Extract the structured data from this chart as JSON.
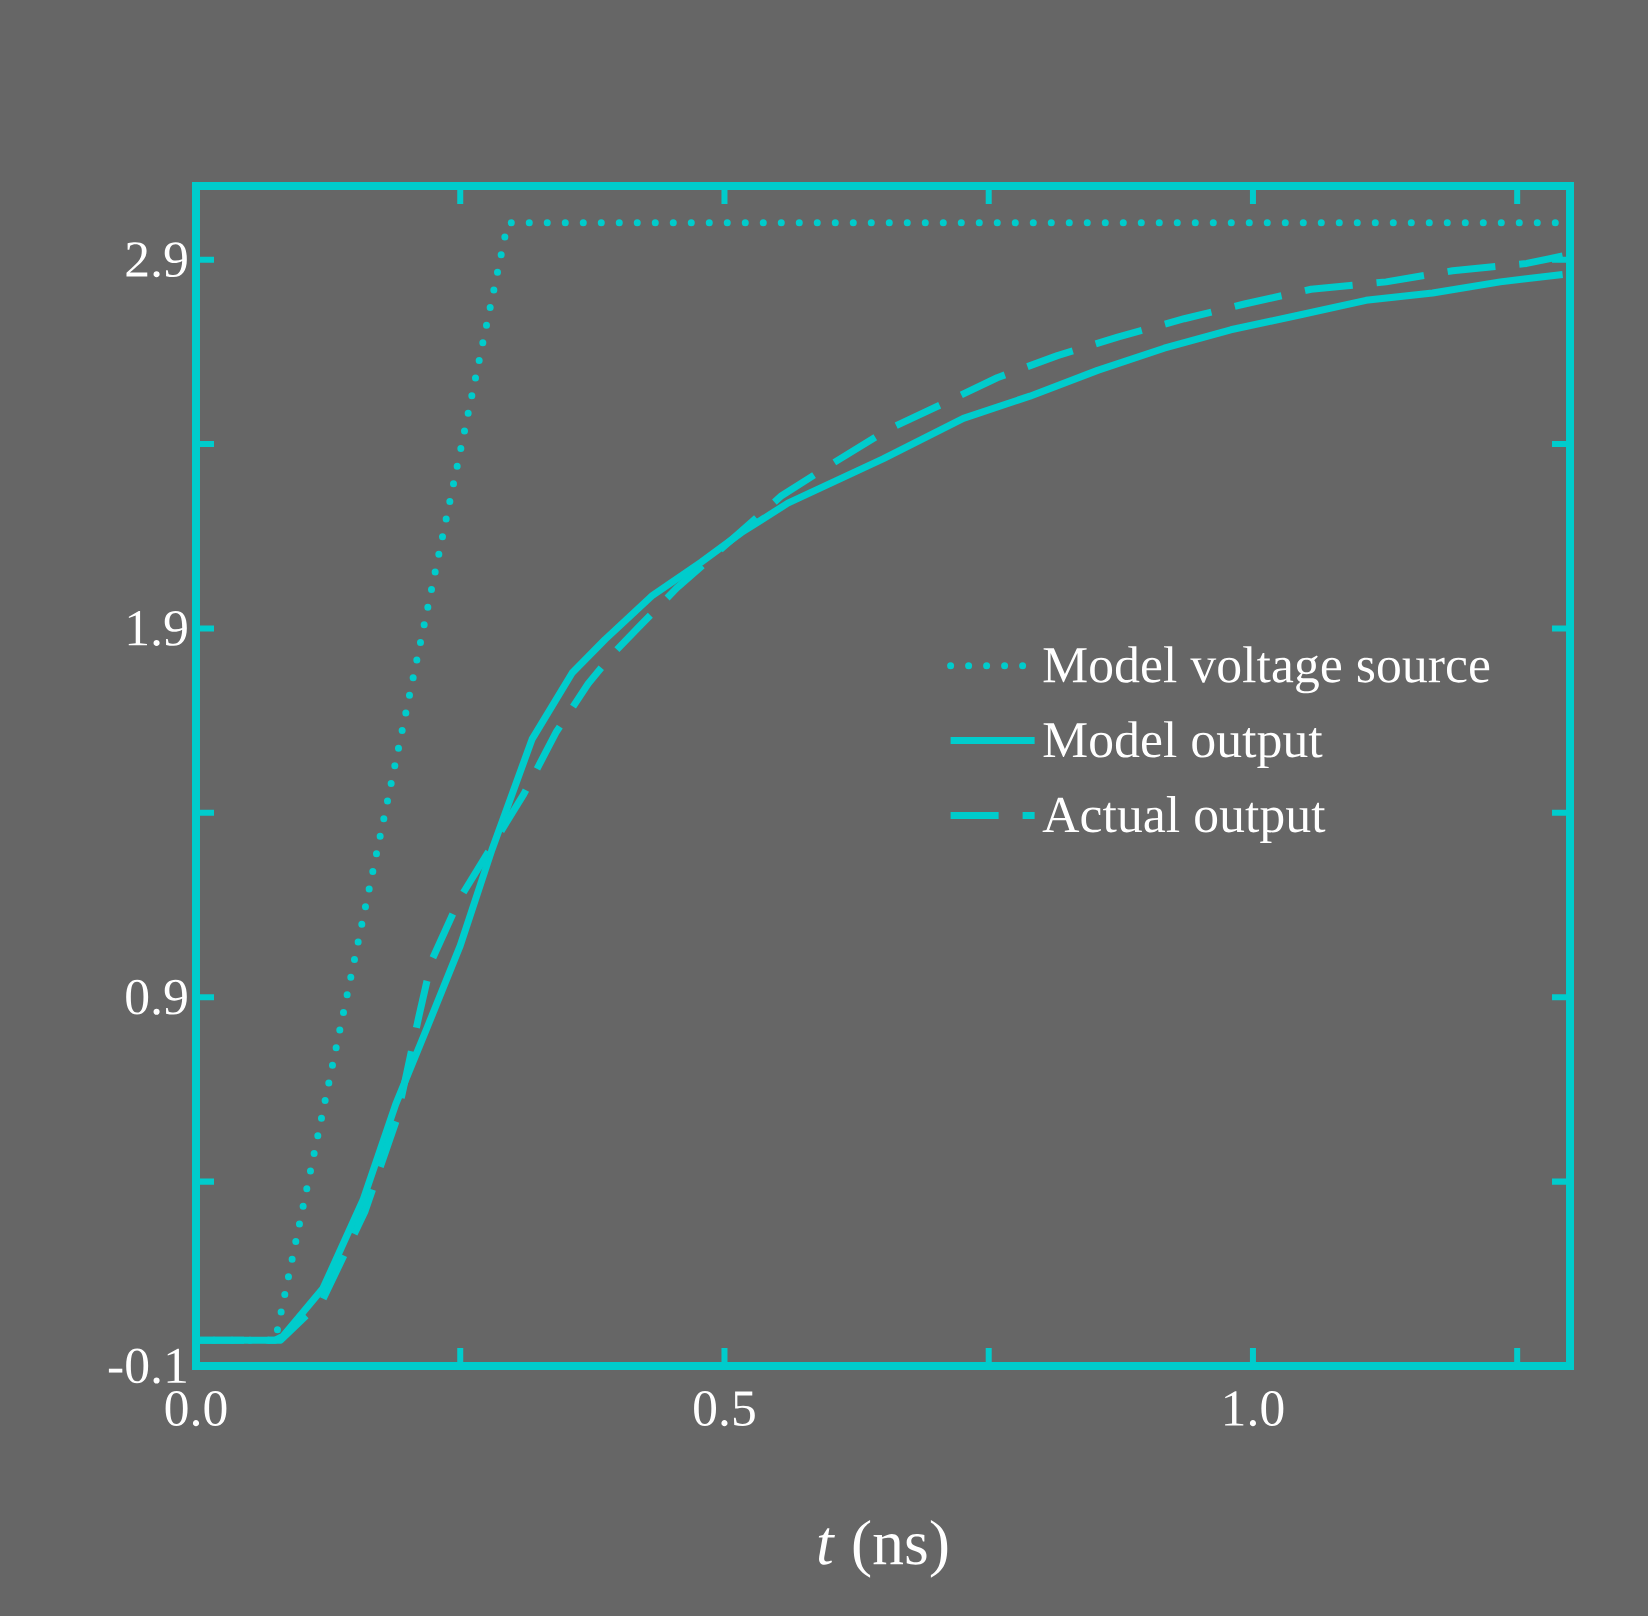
{
  "chart_data": {
    "type": "line",
    "xlabel": "*t* (ns)",
    "xlim": [
      0,
      1.3
    ],
    "ylim": [
      -0.1,
      3.1
    ],
    "xticks": [
      {
        "value": 0,
        "label": "0.0"
      },
      {
        "value": 0.25,
        "label": null
      },
      0.5,
      {
        "value": 0.75,
        "label": null
      },
      {
        "value": 1.0,
        "label": "1.0"
      },
      {
        "value": 1.25,
        "label": null
      }
    ],
    "yticks": [
      -0.1,
      {
        "value": 0.4,
        "label": null
      },
      0.9,
      {
        "value": 1.4,
        "label": null
      },
      1.9,
      {
        "value": 2.4,
        "label": null
      },
      2.9
    ],
    "legend": "right",
    "grid": false,
    "marker": "none",
    "series": [
      {
        "name": "Model voltage source",
        "color": "#00cccc",
        "line_style": "dotted",
        "x": [
          0,
          0.075,
          0.295,
          1.3
        ],
        "values": [
          -0.03,
          -0.03,
          3.0,
          3.0
        ]
      },
      {
        "name": "Model output",
        "color": "#00cccc",
        "line_style": "solid",
        "x": [
          0,
          0.075,
          0.082,
          0.12,
          0.158,
          0.189,
          0.219,
          0.25,
          0.28,
          0.318,
          0.356,
          0.387,
          0.432,
          0.478,
          0.516,
          0.56,
          0.65,
          0.726,
          0.789,
          0.853,
          0.916,
          0.979,
          1.044,
          1.107,
          1.17,
          1.234,
          1.293
        ],
        "values": [
          -0.03,
          -0.03,
          -0.02,
          0.11,
          0.35,
          0.61,
          0.82,
          1.04,
          1.3,
          1.6,
          1.78,
          1.87,
          1.99,
          2.08,
          2.16,
          2.24,
          2.36,
          2.47,
          2.53,
          2.6,
          2.66,
          2.71,
          2.75,
          2.79,
          2.81,
          2.84,
          2.86
        ]
      },
      {
        "name": "Actual output",
        "color": "#00cccc",
        "line_style": "dashed",
        "x": [
          0,
          0.08,
          0.12,
          0.16,
          0.19,
          0.211,
          0.223,
          0.25,
          0.31,
          0.341,
          0.371,
          0.394,
          0.421,
          0.455,
          0.554,
          0.598,
          0.655,
          0.707,
          0.758,
          0.815,
          0.872,
          0.935,
          0.992,
          1.055,
          1.126,
          1.189,
          1.259,
          1.293
        ],
        "values": [
          -0.03,
          -0.03,
          0.08,
          0.32,
          0.57,
          0.85,
          1.0,
          1.17,
          1.45,
          1.62,
          1.75,
          1.83,
          1.91,
          2.01,
          2.26,
          2.34,
          2.44,
          2.51,
          2.58,
          2.64,
          2.69,
          2.74,
          2.78,
          2.82,
          2.84,
          2.87,
          2.89,
          2.91
        ]
      }
    ]
  }
}
